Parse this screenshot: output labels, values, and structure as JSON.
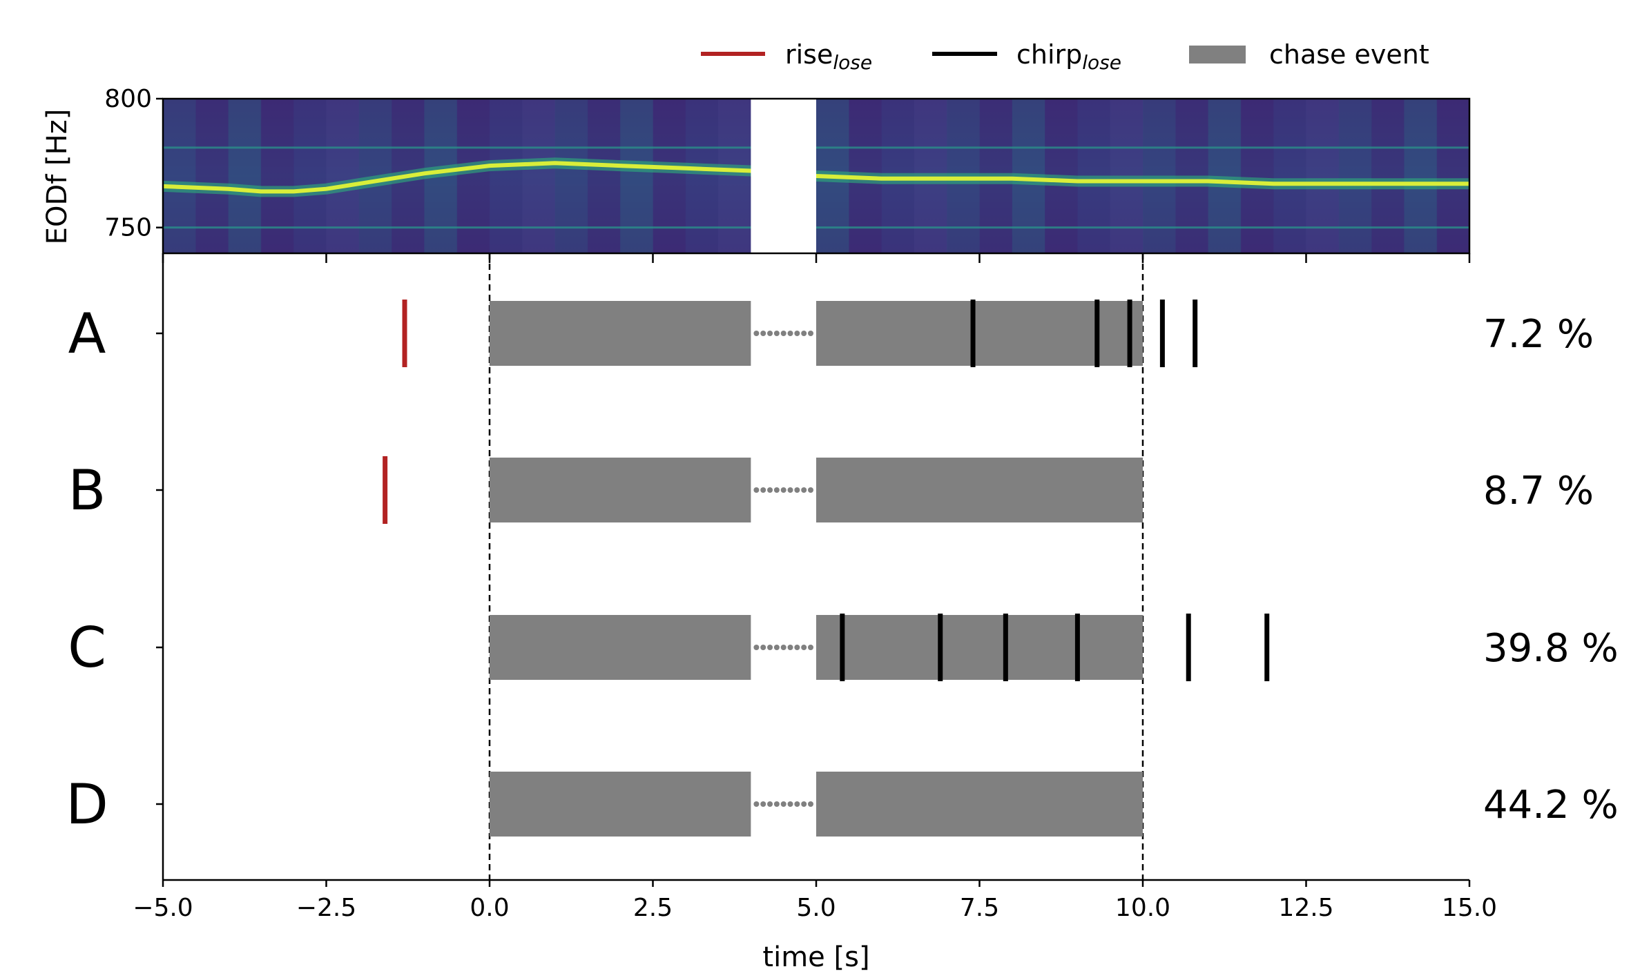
{
  "legend": {
    "rise": {
      "main": "rise",
      "sub": "lose"
    },
    "chirp": {
      "main": "chirp",
      "sub": "lose"
    },
    "chase": "chase event"
  },
  "colors": {
    "rise": "#b22222",
    "chirp": "#000000",
    "chase": "#808080",
    "spectrogram_bg": "#3b2a73",
    "trace": "#d9ee3a"
  },
  "chart_data": [
    {
      "type": "heatmap",
      "ylabel": "EODf [Hz]",
      "yticks": [
        "800",
        "750"
      ],
      "ylim": [
        740,
        800
      ],
      "xlim": [
        -5,
        15
      ],
      "colormap": "viridis",
      "gap": [
        4,
        5
      ],
      "trace": {
        "x": [
          -5,
          -4,
          -3.5,
          -3,
          -2.5,
          -2,
          -1,
          0,
          1,
          2,
          3,
          4,
          5,
          6,
          7,
          8,
          9,
          10,
          11,
          12,
          13,
          14,
          15
        ],
        "y": [
          766,
          765,
          764,
          764,
          765,
          767,
          771,
          774,
          775,
          774,
          773,
          772,
          770,
          769,
          769,
          769,
          768,
          768,
          768,
          767,
          767,
          767,
          767
        ]
      },
      "lines": [
        750,
        781
      ]
    },
    {
      "type": "scatter",
      "xlabel": "time [s]",
      "xlim": [
        -5,
        15
      ],
      "xticks": [
        "−5.0",
        "−2.5",
        "0.0",
        "2.5",
        "5.0",
        "7.5",
        "10.0",
        "12.5",
        "15.0"
      ],
      "xtick_values": [
        -5,
        -2.5,
        0,
        2.5,
        5,
        7.5,
        10,
        12.5,
        15
      ],
      "vlines": [
        0,
        10
      ],
      "rows": [
        {
          "label": "A",
          "percent": "7.2 %",
          "chase": [
            [
              0,
              4
            ],
            [
              5,
              10
            ]
          ],
          "rises": [
            -1.3
          ],
          "chirps": [
            7.4,
            9.3,
            9.8,
            10.3,
            10.8
          ]
        },
        {
          "label": "B",
          "percent": "8.7 %",
          "chase": [
            [
              0,
              4
            ],
            [
              5,
              10
            ]
          ],
          "rises": [
            -1.6
          ],
          "chirps": []
        },
        {
          "label": "C",
          "percent": "39.8 %",
          "chase": [
            [
              0,
              4
            ],
            [
              5,
              10
            ]
          ],
          "rises": [],
          "chirps": [
            5.4,
            6.9,
            7.9,
            9.0,
            10.7,
            11.9
          ]
        },
        {
          "label": "D",
          "percent": "44.2 %",
          "chase": [
            [
              0,
              4
            ],
            [
              5,
              10
            ]
          ],
          "rises": [],
          "chirps": []
        }
      ]
    }
  ]
}
